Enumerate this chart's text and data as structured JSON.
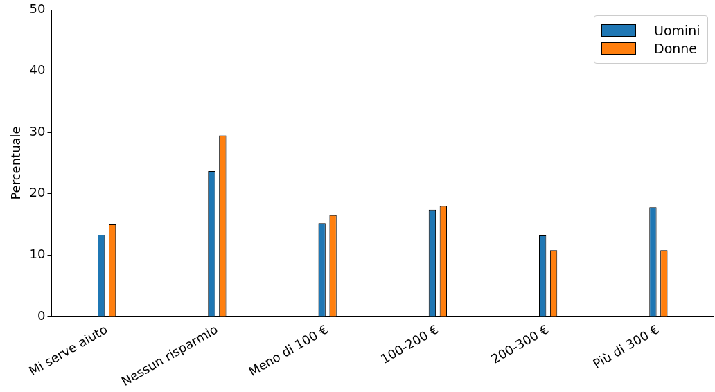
{
  "chart_data": {
    "type": "bar",
    "ylabel": "Percentuale",
    "categories": [
      "Mi serve aiuto",
      "Nessun risparmio",
      "Meno di 100 €",
      "100-200 €",
      "200-300 €",
      "Più di 300 €"
    ],
    "series": [
      {
        "name": "Uomini",
        "color": "#1f77b4",
        "values": [
          13.3,
          23.7,
          15.2,
          17.4,
          13.2,
          17.8
        ]
      },
      {
        "name": "Donne",
        "color": "#ff7f0e",
        "values": [
          15.0,
          29.5,
          16.5,
          18.0,
          10.8,
          10.8
        ]
      }
    ],
    "ylim": [
      0,
      50
    ],
    "yticks": [
      0,
      10,
      20,
      30,
      40,
      50
    ],
    "grid": false,
    "legend": "top right"
  }
}
